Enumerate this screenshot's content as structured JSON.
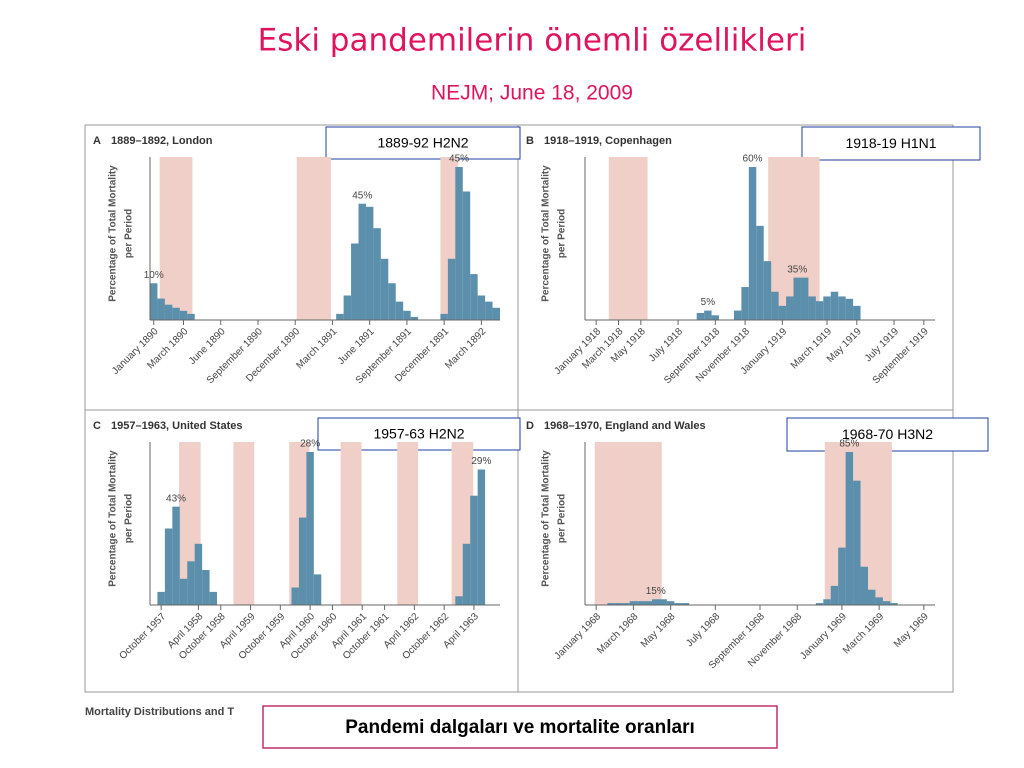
{
  "title": "Eski pandemilerin önemli özellikleri",
  "subtitle": "NEJM; June 18, 2009",
  "figure_caption": "Mortality Distributions and T",
  "caption": "Pandemi dalgaları ve mortalite oranları",
  "chart_data": [
    {
      "type": "bar",
      "letter": "A",
      "title": "1889–1892, London",
      "tag": "1889-92  H2N2",
      "ylabel": [
        "Percentage of Total Mortality",
        "per Period"
      ],
      "color": "#5b8fab",
      "shading_color": "#efcfc7",
      "categories": [
        "January 1890",
        null,
        null,
        null,
        "March 1890",
        null,
        null,
        null,
        null,
        "June 1890",
        null,
        null,
        null,
        null,
        "September 1890",
        null,
        null,
        null,
        null,
        "December 1890",
        null,
        null,
        null,
        null,
        "March 1891",
        null,
        null,
        null,
        null,
        "June 1891",
        null,
        null,
        null,
        null,
        "September 1891",
        null,
        null,
        null,
        null,
        "December 1891",
        null,
        null,
        null,
        null,
        "March 1892",
        null,
        null
      ],
      "values": [
        12,
        7,
        5,
        4,
        3,
        2,
        0,
        0,
        0,
        0,
        0,
        0,
        0,
        0,
        0,
        0,
        0,
        0,
        0,
        0,
        0,
        0,
        0,
        0,
        0,
        2,
        8,
        25,
        38,
        37,
        30,
        20,
        12,
        6,
        3,
        1,
        0,
        0,
        0,
        2,
        20,
        50,
        42,
        15,
        8,
        6,
        4
      ],
      "annotations": [
        "10%",
        "45%",
        "45%"
      ]
    },
    {
      "type": "bar",
      "letter": "B",
      "title": "1918–1919, Copenhagen",
      "tag": "1918-19  H1N1",
      "ylabel": [
        "Percentage of Total Mortality",
        "per Period"
      ],
      "color": "#5b8fab",
      "shading_color": "#efcfc7",
      "categories": [
        null,
        "January 1918",
        null,
        null,
        "March 1918",
        null,
        null,
        "May 1918",
        null,
        null,
        null,
        null,
        "July 1918",
        null,
        null,
        null,
        null,
        "September 1918",
        null,
        null,
        null,
        "November 1918",
        null,
        null,
        null,
        null,
        "January 1919",
        null,
        null,
        null,
        null,
        null,
        "March 1919",
        null,
        null,
        null,
        "May 1919",
        null,
        null,
        null,
        null,
        "July 1919",
        null,
        null,
        null,
        "September 1919",
        null
      ],
      "values": [
        0,
        0,
        0,
        0,
        0,
        0,
        0,
        0,
        0,
        0,
        0,
        0,
        0,
        0,
        0,
        3,
        4,
        2,
        0,
        0,
        4,
        14,
        65,
        40,
        25,
        12,
        6,
        10,
        18,
        18,
        10,
        8,
        10,
        12,
        10,
        9,
        6,
        0,
        0,
        0,
        0,
        0,
        0,
        0,
        0,
        0,
        0
      ],
      "annotations": [
        "5%",
        "60%",
        "35%"
      ]
    },
    {
      "type": "bar",
      "letter": "C",
      "title": "1957–1963, United States",
      "tag": "1957-63   H2N2",
      "ylabel": [
        "Percentage of Total Mortality",
        "per Period"
      ],
      "color": "#5b8fab",
      "shading_color": "#efcfc7",
      "categories": [
        null,
        "October 1957",
        null,
        null,
        null,
        null,
        "April 1958",
        null,
        null,
        "October 1958",
        null,
        null,
        null,
        "April 1959",
        null,
        null,
        null,
        "October 1959",
        null,
        null,
        null,
        "April 1960",
        null,
        null,
        "October 1960",
        null,
        null,
        null,
        "April 1961",
        null,
        null,
        "October 1961",
        null,
        null,
        null,
        "April 1962",
        null,
        null,
        null,
        "October 1962",
        null,
        null,
        null,
        "April 1963",
        null,
        null,
        null
      ],
      "values": [
        0,
        6,
        35,
        45,
        12,
        20,
        28,
        16,
        6,
        0,
        0,
        0,
        0,
        0,
        0,
        0,
        0,
        0,
        0,
        8,
        40,
        70,
        14,
        0,
        0,
        0,
        0,
        0,
        0,
        0,
        0,
        0,
        0,
        0,
        0,
        0,
        0,
        0,
        0,
        0,
        0,
        4,
        28,
        50,
        62,
        0,
        0
      ],
      "annotations": [
        "43%",
        "28%",
        "29%"
      ]
    },
    {
      "type": "bar",
      "letter": "D",
      "title": "1968–1970, England and Wales",
      "tag": "1968-70   H3N2",
      "ylabel": [
        "Percentage of Total Mortality",
        "per Period"
      ],
      "color": "#5b8fab",
      "shading_color": "#efcfc7",
      "categories": [
        null,
        "January 1968",
        null,
        null,
        null,
        null,
        "March 1968",
        null,
        null,
        null,
        null,
        "May 1968",
        null,
        null,
        null,
        null,
        null,
        "July 1968",
        null,
        null,
        null,
        null,
        null,
        "September 1968",
        null,
        null,
        null,
        null,
        "November 1968",
        null,
        null,
        null,
        null,
        null,
        "January 1969",
        null,
        null,
        null,
        null,
        "March 1969",
        null,
        null,
        null,
        null,
        null,
        "May 1969",
        null
      ],
      "values": [
        0,
        0,
        0,
        1,
        1,
        1,
        2,
        2,
        2,
        3,
        3,
        2,
        1,
        1,
        0,
        0,
        0,
        0,
        0,
        0,
        0,
        0,
        0,
        0,
        0,
        0,
        0,
        0,
        0,
        0,
        0,
        1,
        3,
        10,
        30,
        80,
        65,
        20,
        8,
        4,
        2,
        1,
        0,
        0,
        0,
        0,
        0
      ],
      "annotations": [
        "15%",
        "85%"
      ]
    }
  ]
}
